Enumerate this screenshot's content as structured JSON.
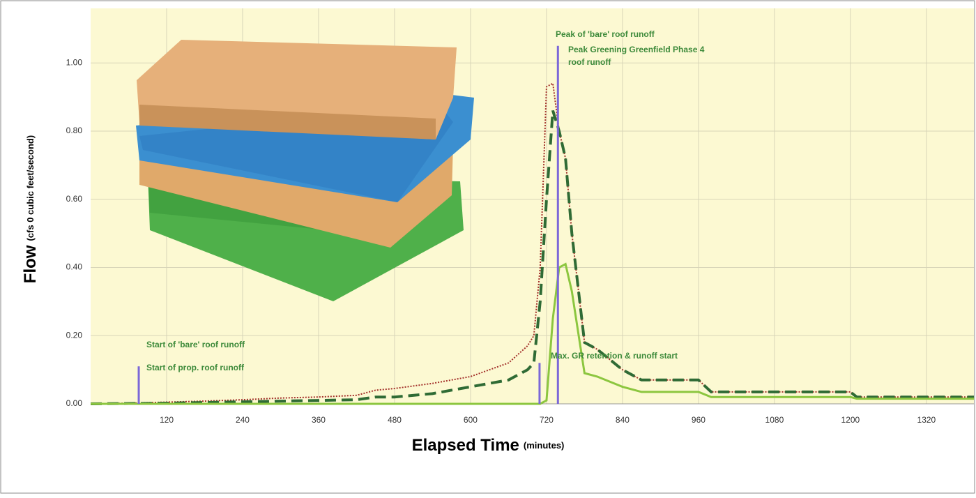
{
  "chart_data": {
    "type": "line",
    "y_label": "Flow",
    "y_label_unit": "(cfs 0 cubic feet/second)",
    "x_label": "Elapsed Time",
    "x_label_unit": "(minutes)",
    "x": [
      0,
      60,
      120,
      180,
      240,
      300,
      360,
      420,
      450,
      480,
      540,
      600,
      660,
      690,
      700,
      710,
      720,
      730,
      740,
      750,
      760,
      780,
      800,
      840,
      870,
      960,
      980,
      1000,
      1200,
      1210,
      1395
    ],
    "series": [
      {
        "color": "#a3302a",
        "style": "dotted",
        "values": [
          0,
          0.002,
          0.005,
          0.008,
          0.012,
          0.017,
          0.02,
          0.025,
          0.04,
          0.045,
          0.06,
          0.08,
          0.12,
          0.17,
          0.2,
          0.4,
          0.93,
          0.94,
          0.8,
          0.72,
          0.5,
          0.18,
          0.16,
          0.1,
          0.07,
          0.07,
          0.035,
          0.035,
          0.035,
          0.02,
          0.02
        ]
      },
      {
        "color": "#2f6b35",
        "style": "dashed",
        "values": [
          0,
          0.001,
          0.002,
          0.004,
          0.006,
          0.008,
          0.01,
          0.012,
          0.02,
          0.02,
          0.03,
          0.05,
          0.07,
          0.1,
          0.12,
          0.3,
          0.6,
          0.86,
          0.8,
          0.72,
          0.5,
          0.18,
          0.16,
          0.1,
          0.07,
          0.07,
          0.035,
          0.035,
          0.035,
          0.02,
          0.02
        ]
      },
      {
        "color": "#8cc63f",
        "style": "solid",
        "values": [
          0,
          0,
          0,
          0,
          0,
          0,
          0,
          0,
          0,
          0,
          0,
          0,
          0,
          0,
          0,
          0,
          0.01,
          0.25,
          0.4,
          0.41,
          0.33,
          0.09,
          0.08,
          0.05,
          0.035,
          0.035,
          0.02,
          0.02,
          0.02,
          0.015,
          0.015
        ]
      }
    ],
    "markers": [
      {
        "x": 76,
        "y": 0.11
      },
      {
        "x": 709,
        "y": 0.12
      },
      {
        "x": 738,
        "y": 1.05
      }
    ],
    "marker_color": "#7b68d8",
    "annotations": [
      "Start of 'bare' roof runoff",
      "Start of prop. roof runoff",
      "Max. GR retention & runoff start",
      "Peak of 'bare' roof runoff",
      "Peak Greening Greenfield Phase 4",
      "roof runoff"
    ],
    "annotation_color": "#3d8a3a",
    "xlim": [
      0,
      1395
    ],
    "ylim": [
      0,
      1.16
    ],
    "xticks": [
      120,
      240,
      360,
      480,
      600,
      720,
      840,
      960,
      1080,
      1200,
      1320
    ],
    "yticks": [
      {
        "value": 0,
        "label": "0.00"
      },
      {
        "value": 0.2,
        "label": "0.20"
      },
      {
        "value": 0.4,
        "label": "0.40"
      },
      {
        "value": 0.6,
        "label": "0.60"
      },
      {
        "value": 0.8,
        "label": "0.80"
      },
      {
        "value": 1,
        "label": "1.00"
      }
    ],
    "grid": true
  }
}
